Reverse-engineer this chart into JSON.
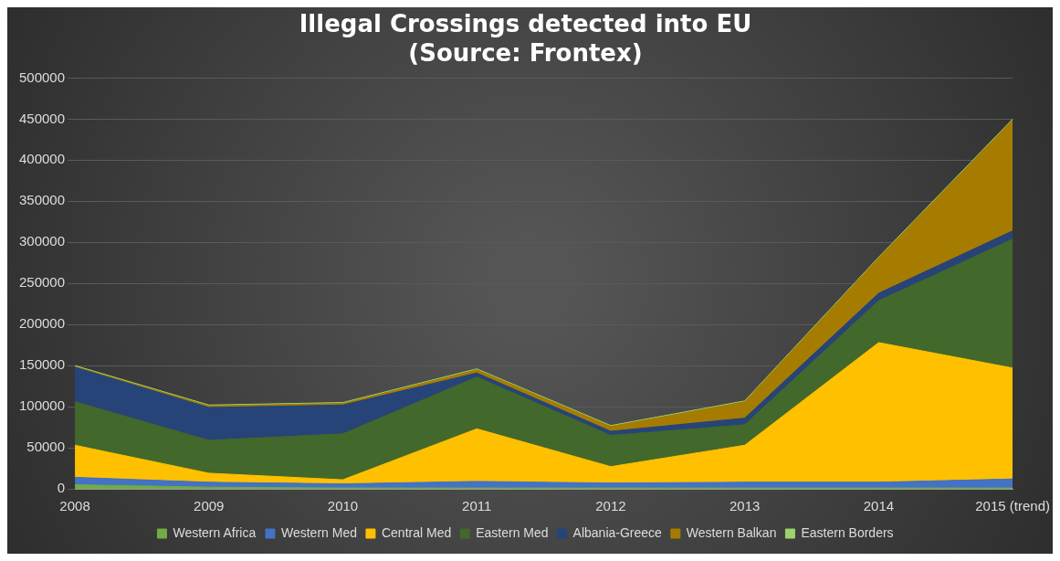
{
  "chart_data": {
    "type": "area",
    "stacked": true,
    "title": [
      "Illegal Crossings detected into EU",
      "(Source: Frontex)"
    ],
    "categories": [
      "2008",
      "2009",
      "2010",
      "2011",
      "2012",
      "2013",
      "2014",
      "2015 (trend)"
    ],
    "series": [
      {
        "name": "Western Africa",
        "color": "#70ad47",
        "values": [
          5000,
          2000,
          1000,
          1000,
          1000,
          1000,
          1000,
          1000
        ]
      },
      {
        "name": "Western Med",
        "color": "#4472c4",
        "values": [
          9000,
          6000,
          5000,
          8000,
          6000,
          7000,
          7000,
          11000
        ]
      },
      {
        "name": "Central Med",
        "color": "#ffc000",
        "values": [
          39000,
          11000,
          5000,
          64000,
          20000,
          45000,
          170000,
          135000
        ]
      },
      {
        "name": "Eastern Med",
        "color": "#43682b",
        "values": [
          53000,
          40000,
          56000,
          63000,
          38000,
          25000,
          51000,
          157000
        ]
      },
      {
        "name": "Albania-Greece",
        "color": "#264478",
        "values": [
          42000,
          40000,
          35000,
          5000,
          5000,
          8000,
          9000,
          10000
        ]
      },
      {
        "name": "Western Balkan",
        "color": "#a67c00",
        "values": [
          1000,
          2000,
          2000,
          4000,
          6000,
          20000,
          43000,
          135000
        ]
      },
      {
        "name": "Eastern Borders",
        "color": "#9dd36c",
        "values": [
          1000,
          1000,
          1000,
          1000,
          1000,
          1000,
          1000,
          1000
        ]
      }
    ],
    "ylim": [
      0,
      500000
    ],
    "yticks": [
      0,
      50000,
      100000,
      150000,
      200000,
      250000,
      300000,
      350000,
      400000,
      450000,
      500000
    ],
    "grid": "y",
    "legend": "bottom"
  }
}
